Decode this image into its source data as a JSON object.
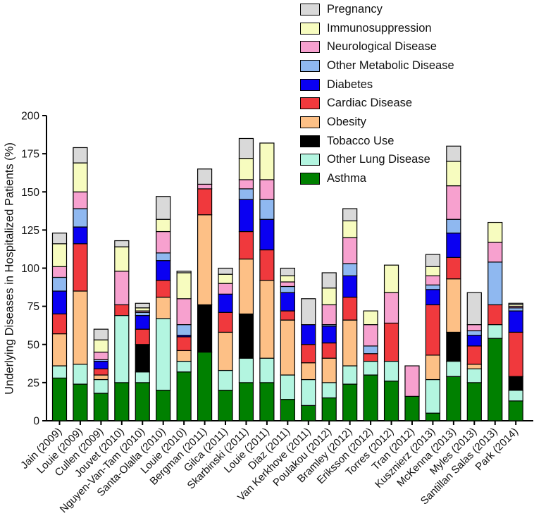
{
  "chart_data": {
    "type": "bar",
    "stacked": true,
    "title": "",
    "xlabel": "",
    "ylabel": "Underlying Diseases in  Hospitalized Patients (%)",
    "ylim": [
      0,
      200
    ],
    "yticks": [
      0,
      25,
      50,
      75,
      100,
      125,
      150,
      175,
      200
    ],
    "grid": false,
    "legend_position": "top-right",
    "categories": [
      "Jain (2009)",
      "Louie (2009)",
      "Cullen (2009)",
      "Jouvet (2010)",
      "Nguyen-Van-Tam (2010)",
      "Santa-Olalla (2010)",
      "Louie (2010)",
      "Bergman (2011)",
      "Gilca (2011)",
      "Skarbinski (2011)",
      "Louie (2011)",
      "Diaz (2011)",
      "Van Kerkhove (2011)",
      "Poulakou (2012)",
      "Bramley (2012)",
      "Eriksson (2012)",
      "Torres (2012)",
      "Tran (2012)",
      "Kusznierz (2013)",
      "McKenna (2013)",
      "Myles (2013)",
      "Santillan Salas (2013)",
      "Park (2014)"
    ],
    "series": [
      {
        "name": "Asthma",
        "color": "#008000",
        "values": [
          28,
          24,
          18,
          25,
          25,
          20,
          32,
          45,
          20,
          25,
          25,
          14,
          10,
          15,
          24,
          30,
          26,
          16,
          5,
          29,
          25,
          54,
          13
        ]
      },
      {
        "name": "Other Lung Disease",
        "color": "#b3f5e0",
        "values": [
          8,
          13,
          9,
          44,
          7,
          47,
          7,
          0,
          13,
          16,
          16,
          16,
          17,
          10,
          12,
          9,
          13,
          0,
          22,
          10,
          9,
          9,
          7
        ]
      },
      {
        "name": "Tobacco Use",
        "color": "#000000",
        "values": [
          0,
          0,
          0,
          0,
          18,
          0,
          0,
          31,
          0,
          29,
          0,
          0,
          0,
          0,
          0,
          0,
          0,
          0,
          0,
          19,
          0,
          0,
          9
        ]
      },
      {
        "name": "Obesity",
        "color": "#fdc086",
        "values": [
          21,
          48,
          3,
          0,
          0,
          14,
          7,
          59,
          25,
          36,
          51,
          36,
          11,
          16,
          30,
          0,
          0,
          0,
          16,
          35,
          3,
          0,
          0
        ]
      },
      {
        "name": "Cardiac Disease",
        "color": "#f0393d",
        "values": [
          13,
          31,
          4,
          7,
          10,
          11,
          9,
          17,
          13,
          18,
          20,
          6,
          12,
          10,
          15,
          5,
          25,
          0,
          33,
          14,
          12,
          13,
          29
        ]
      },
      {
        "name": "Diabetes",
        "color": "#0a00f2",
        "values": [
          15,
          11,
          5,
          0,
          9,
          13,
          1,
          0,
          12,
          21,
          20,
          12,
          13,
          11,
          14,
          0,
          0,
          0,
          10,
          16,
          7,
          0,
          14
        ]
      },
      {
        "name": "Other Metabolic Disease",
        "color": "#8fb8f0",
        "values": [
          9,
          12,
          1,
          0,
          2,
          5,
          7,
          0,
          0,
          7,
          13,
          4,
          0,
          1,
          8,
          5,
          0,
          0,
          3,
          9,
          3,
          28,
          2
        ]
      },
      {
        "name": "Neurological Disease",
        "color": "#f7a1cf",
        "values": [
          7,
          11,
          5,
          22,
          1,
          14,
          17,
          3,
          7,
          6,
          13,
          3,
          0,
          13,
          17,
          14,
          20,
          20,
          6,
          22,
          4,
          13,
          1
        ]
      },
      {
        "name": "Immunosuppression",
        "color": "#f7fcbf",
        "values": [
          15,
          19,
          8,
          16,
          2,
          8,
          17,
          0,
          6,
          14,
          24,
          4,
          0,
          11,
          11,
          9,
          18,
          0,
          6,
          16,
          0,
          13,
          1
        ]
      },
      {
        "name": "Pregnancy",
        "color": "#d9d9d9",
        "values": [
          7,
          10,
          7,
          4,
          3,
          15,
          1,
          10,
          4,
          13,
          0,
          5,
          17,
          10,
          8,
          0,
          0,
          0,
          8,
          10,
          21,
          0,
          1
        ]
      }
    ]
  }
}
